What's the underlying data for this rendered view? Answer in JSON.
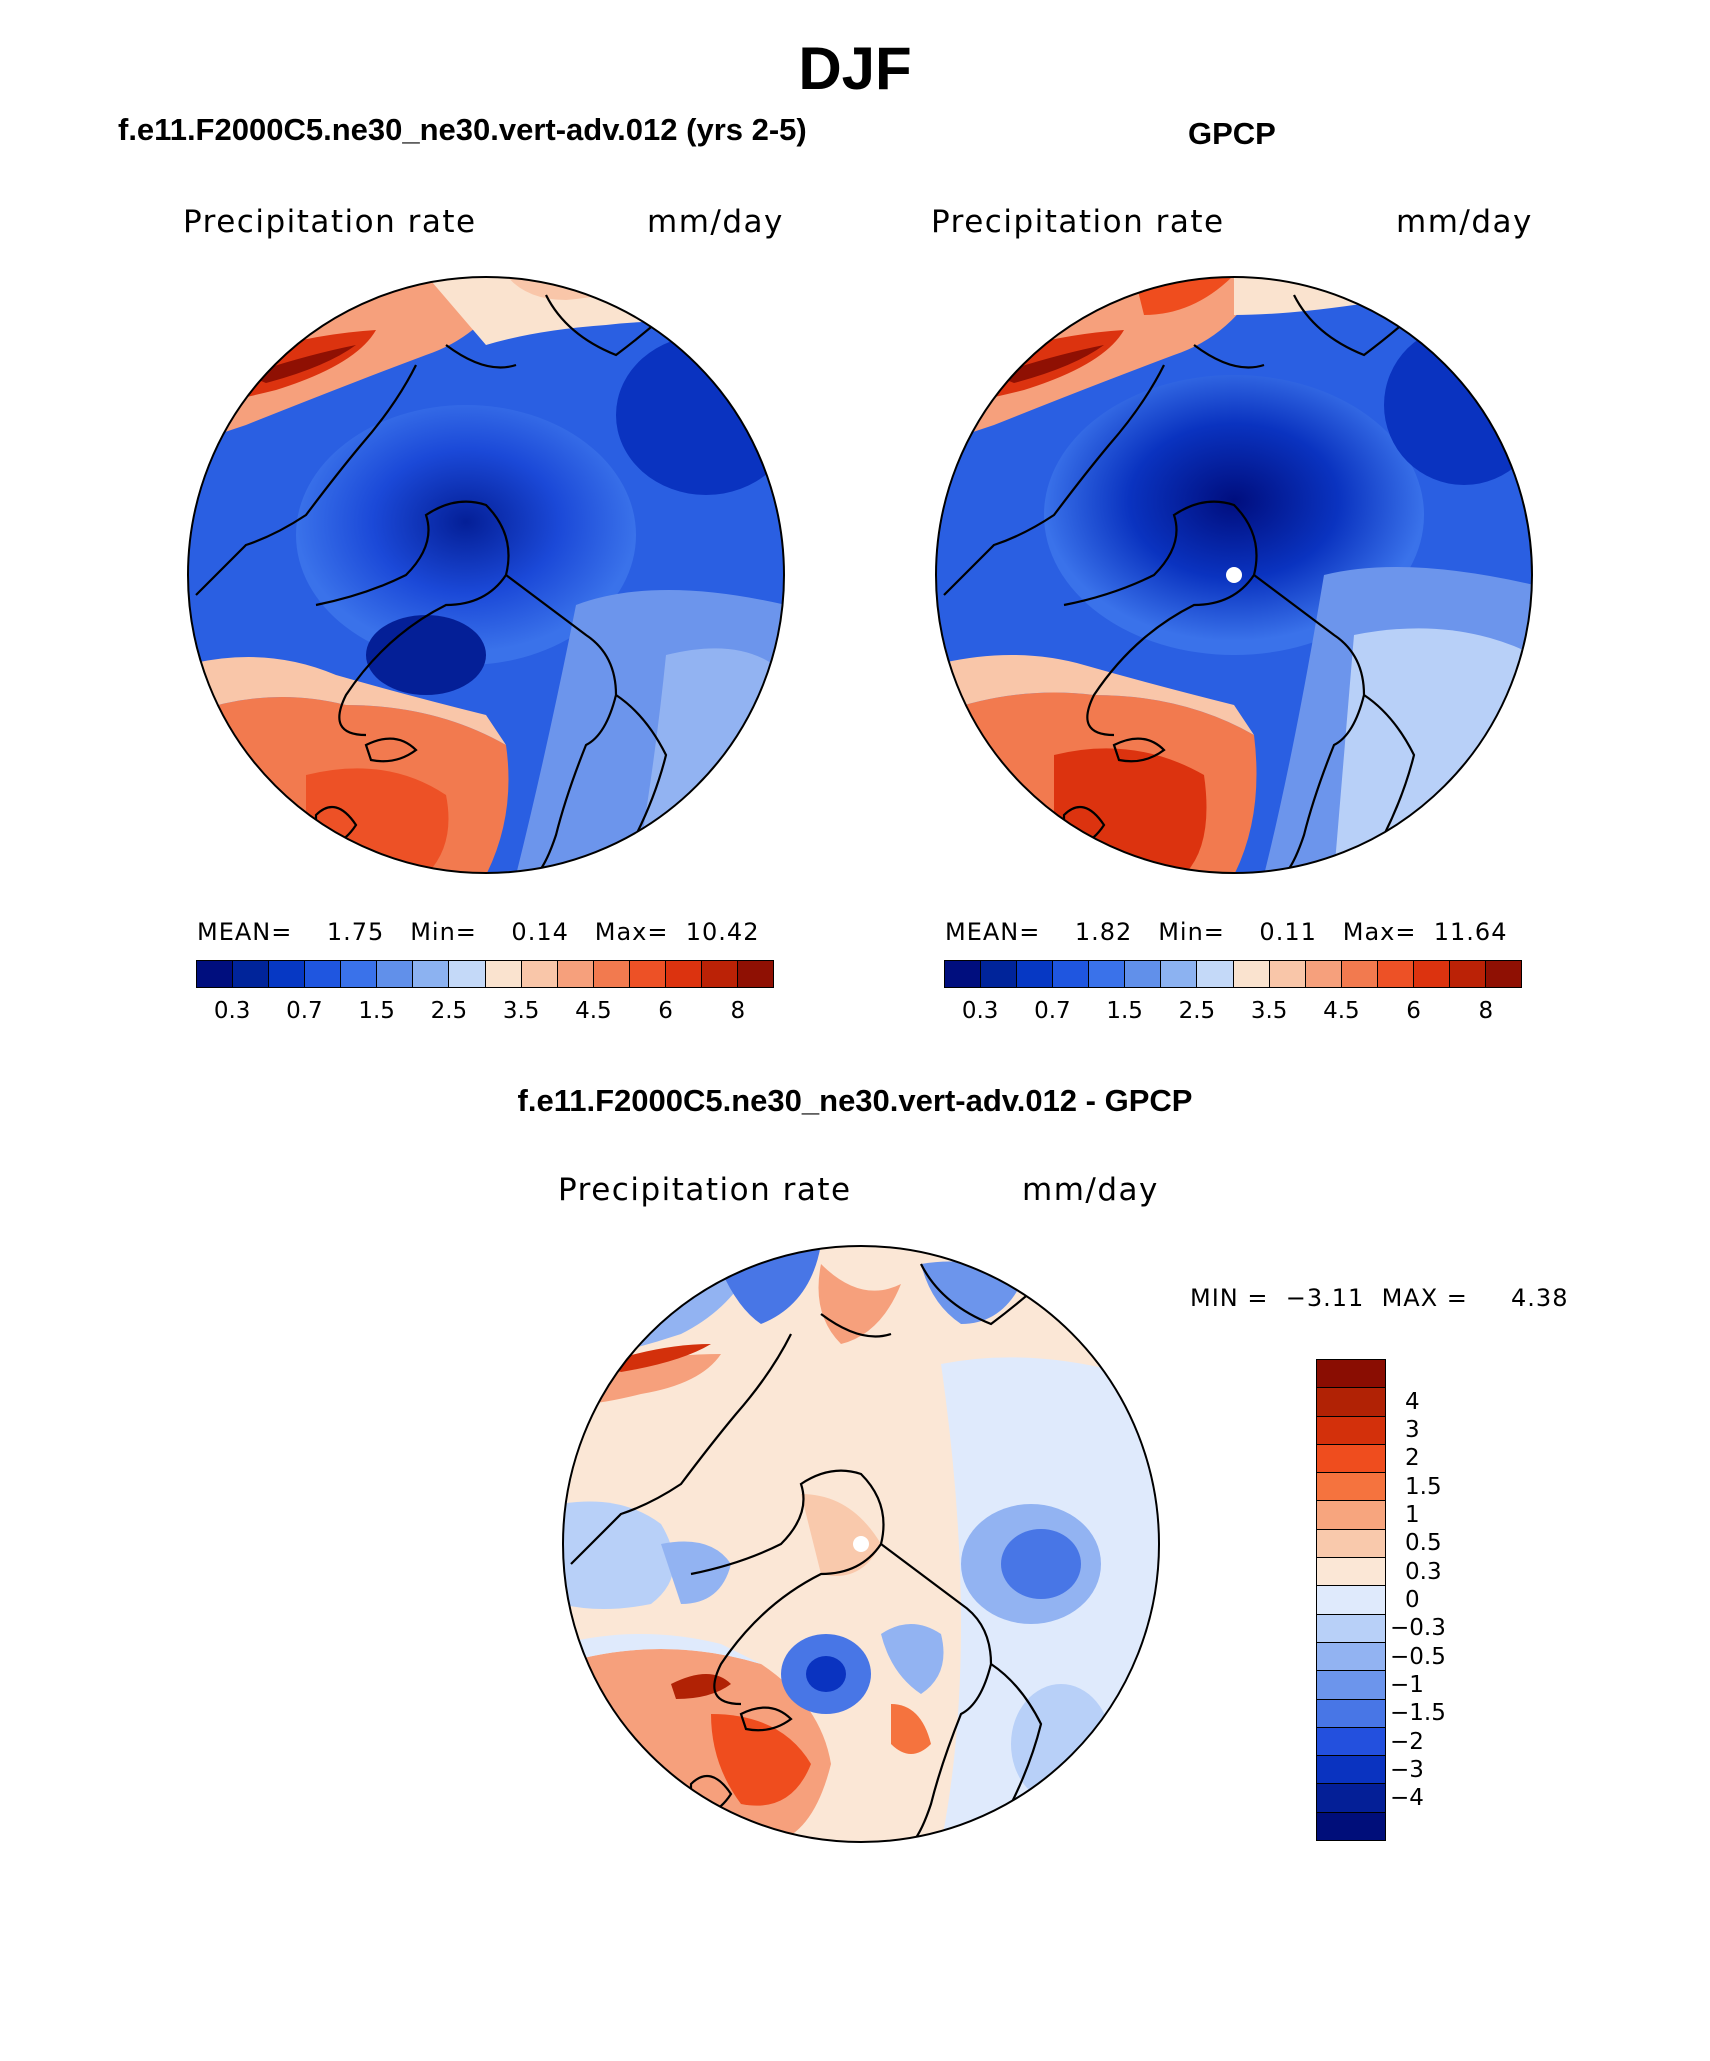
{
  "page": {
    "title": "DJF"
  },
  "panels": [
    {
      "title": "f.e11.F2000C5.ne30_ne30.vert-adv.012 (yrs 2-5)",
      "variable": "Precipitation rate",
      "units": "mm/day",
      "stats": {
        "mean_label": "MEAN=",
        "mean": "1.75",
        "min_label": "Min=",
        "min": "0.14",
        "max_label": "Max=",
        "max": "10.42"
      },
      "pole_marker": false
    },
    {
      "title": "GPCP",
      "variable": "Precipitation rate",
      "units": "mm/day",
      "stats": {
        "mean_label": "MEAN=",
        "mean": "1.82",
        "min_label": "Min=",
        "min": "0.11",
        "max_label": "Max=",
        "max": "11.64"
      },
      "pole_marker": true
    }
  ],
  "diff_panel": {
    "title": "f.e11.F2000C5.ne30_ne30.vert-adv.012 - GPCP",
    "variable": "Precipitation rate",
    "units": "mm/day",
    "min_label": "MIN =",
    "min": "−3.11",
    "max_label": "MAX =",
    "max": "4.38"
  },
  "precip_colorbar": {
    "colors": [
      "#000e7e",
      "#00249a",
      "#0638c4",
      "#1f56e0",
      "#3a72ea",
      "#6190ea",
      "#8cb2f1",
      "#c4d9f8",
      "#fae3cf",
      "#f9c6a9",
      "#f6a07c",
      "#f27a4f",
      "#ed5126",
      "#dc330f",
      "#bb2206",
      "#8f1003"
    ],
    "ticks": [
      "0.3",
      "0.7",
      "1.5",
      "2.5",
      "3.5",
      "4.5",
      "6",
      "8"
    ]
  },
  "diff_colorbar": {
    "colors": [
      "#8a0d02",
      "#b12205",
      "#d3300b",
      "#ef4d1e",
      "#f5733e",
      "#f7a57e",
      "#f9c9ac",
      "#fbe7d6",
      "#dfeafc",
      "#b8d0f8",
      "#92b3f2",
      "#6c95ec",
      "#4876e6",
      "#2350de",
      "#0a33c0",
      "#041f97",
      "#000e7a"
    ],
    "labels": [
      "4",
      "3",
      "2",
      "1.5",
      "1",
      "0.5",
      "0.3",
      "0",
      "−0.3",
      "−0.5",
      "−1",
      "−1.5",
      "−2",
      "−3",
      "−4"
    ]
  },
  "colors": {
    "low_precip": "#1b49d8",
    "high_precip": "#ef5a25",
    "zero_diff": "#fbe7d6"
  }
}
